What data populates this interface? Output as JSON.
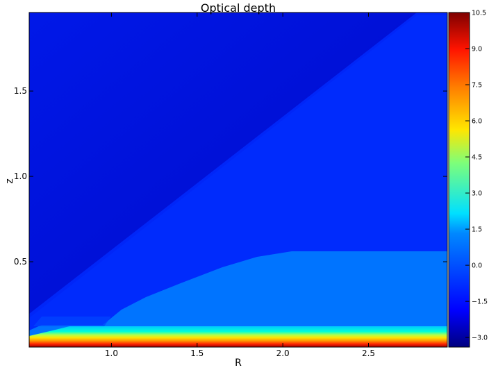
{
  "chart_data": {
    "type": "heatmap",
    "title": "Optical depth",
    "xlabel": "R",
    "ylabel": "z",
    "xlim": [
      0.52,
      2.96
    ],
    "ylim": [
      0.0,
      1.96
    ],
    "xticks": [
      "1.0",
      "1.5",
      "2.0",
      "2.5"
    ],
    "xtick_values": [
      1.0,
      1.5,
      2.0,
      2.5
    ],
    "yticks": [
      "0.5",
      "1.0",
      "1.5"
    ],
    "ytick_values": [
      0.5,
      1.0,
      1.5
    ],
    "colorbar": {
      "colormap": "jet",
      "range": [
        -3.4,
        10.5
      ],
      "tick_labels": [
        "10.5",
        "9.0",
        "7.5",
        "6.0",
        "4.5",
        "3.0",
        "1.5",
        "0.0",
        "−1.5",
        "−3.0"
      ],
      "tick_values": [
        10.5,
        9.0,
        7.5,
        6.0,
        4.5,
        3.0,
        1.5,
        0.0,
        -1.5,
        -3.0
      ]
    },
    "regions": [
      {
        "name": "upper-left wedge",
        "approx_value": -2.8
      },
      {
        "name": "wedge below diagonal",
        "approx_value": -2.0
      },
      {
        "name": "intermediate layer",
        "approx_value": -1.0
      },
      {
        "name": "light-blue dense layer",
        "approx_value": 0.3
      },
      {
        "name": "cyan band",
        "approx_value": 2.0
      },
      {
        "name": "midplane yellow",
        "approx_value": 5.5
      },
      {
        "name": "midplane orange",
        "approx_value": 8.0
      },
      {
        "name": "midplane red",
        "approx_value": 10.0
      }
    ]
  }
}
